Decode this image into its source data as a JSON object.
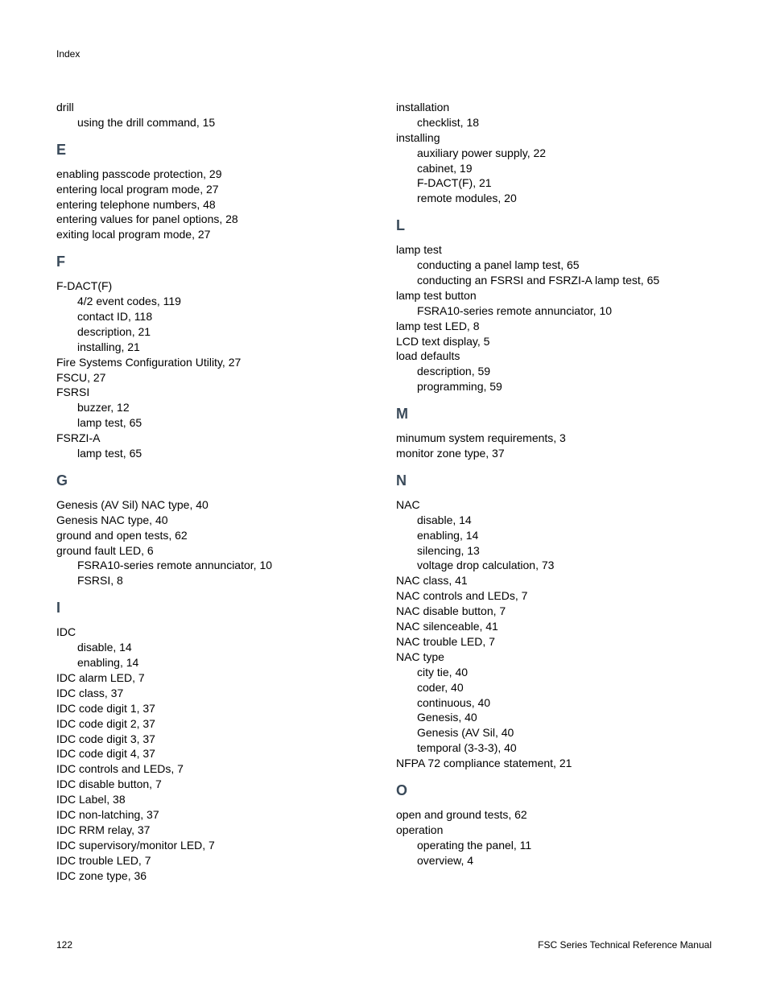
{
  "header": "Index",
  "footer": {
    "pageNumber": "122",
    "docTitle": "FSC Series Technical Reference Manual"
  },
  "left": [
    {
      "type": "entry",
      "text": "drill"
    },
    {
      "type": "sub",
      "text": "using the drill command, 15"
    },
    {
      "type": "letter",
      "text": "E"
    },
    {
      "type": "entry",
      "text": "enabling passcode protection, 29"
    },
    {
      "type": "entry",
      "text": "entering local program mode, 27"
    },
    {
      "type": "entry",
      "text": "entering telephone numbers, 48"
    },
    {
      "type": "entry",
      "text": "entering values for panel options, 28"
    },
    {
      "type": "entry",
      "text": "exiting local program mode, 27"
    },
    {
      "type": "letter",
      "text": "F"
    },
    {
      "type": "entry",
      "text": "F-DACT(F)"
    },
    {
      "type": "sub",
      "text": "4/2 event codes, 119"
    },
    {
      "type": "sub",
      "text": "contact ID, 118"
    },
    {
      "type": "sub",
      "text": "description, 21"
    },
    {
      "type": "sub",
      "text": "installing, 21"
    },
    {
      "type": "entry",
      "text": "Fire Systems Configuration Utility, 27"
    },
    {
      "type": "entry",
      "text": "FSCU, 27"
    },
    {
      "type": "entry",
      "text": "FSRSI"
    },
    {
      "type": "sub",
      "text": "buzzer, 12"
    },
    {
      "type": "sub",
      "text": "lamp test, 65"
    },
    {
      "type": "entry",
      "text": "FSRZI-A"
    },
    {
      "type": "sub",
      "text": "lamp test, 65"
    },
    {
      "type": "letter",
      "text": "G"
    },
    {
      "type": "entry",
      "text": "Genesis (AV Sil) NAC type, 40"
    },
    {
      "type": "entry",
      "text": "Genesis NAC type, 40"
    },
    {
      "type": "entry",
      "text": "ground and open tests, 62"
    },
    {
      "type": "entry",
      "text": "ground fault LED, 6"
    },
    {
      "type": "sub",
      "text": "FSRA10-series remote annunciator, 10"
    },
    {
      "type": "sub",
      "text": "FSRSI, 8"
    },
    {
      "type": "letter",
      "text": "I"
    },
    {
      "type": "entry",
      "text": "IDC"
    },
    {
      "type": "sub",
      "text": "disable, 14"
    },
    {
      "type": "sub",
      "text": "enabling, 14"
    },
    {
      "type": "entry",
      "text": "IDC alarm LED, 7"
    },
    {
      "type": "entry",
      "text": "IDC class, 37"
    },
    {
      "type": "entry",
      "text": "IDC code digit 1, 37"
    },
    {
      "type": "entry",
      "text": "IDC code digit 2, 37"
    },
    {
      "type": "entry",
      "text": "IDC code digit 3, 37"
    },
    {
      "type": "entry",
      "text": "IDC code digit 4, 37"
    },
    {
      "type": "entry",
      "text": "IDC controls and LEDs, 7"
    },
    {
      "type": "entry",
      "text": "IDC disable button, 7"
    },
    {
      "type": "entry",
      "text": "IDC Label, 38"
    },
    {
      "type": "entry",
      "text": "IDC non-latching, 37"
    },
    {
      "type": "entry",
      "text": "IDC RRM relay, 37"
    },
    {
      "type": "entry",
      "text": "IDC supervisory/monitor LED, 7"
    },
    {
      "type": "entry",
      "text": "IDC trouble LED, 7"
    },
    {
      "type": "entry",
      "text": "IDC zone type, 36"
    }
  ],
  "right": [
    {
      "type": "entry",
      "text": "installation"
    },
    {
      "type": "sub",
      "text": "checklist, 18"
    },
    {
      "type": "entry",
      "text": "installing"
    },
    {
      "type": "sub",
      "text": "auxiliary power supply, 22"
    },
    {
      "type": "sub",
      "text": "cabinet, 19"
    },
    {
      "type": "sub",
      "text": "F-DACT(F), 21"
    },
    {
      "type": "sub",
      "text": "remote modules, 20"
    },
    {
      "type": "letter",
      "text": "L"
    },
    {
      "type": "entry",
      "text": "lamp test"
    },
    {
      "type": "sub",
      "text": "conducting a panel lamp test, 65"
    },
    {
      "type": "sub",
      "text": "conducting an FSRSI and FSRZI-A lamp test, 65"
    },
    {
      "type": "entry",
      "text": "lamp test button"
    },
    {
      "type": "sub",
      "text": "FSRA10-series remote annunciator, 10"
    },
    {
      "type": "entry",
      "text": "lamp test LED, 8"
    },
    {
      "type": "entry",
      "text": "LCD text display, 5"
    },
    {
      "type": "entry",
      "text": "load defaults"
    },
    {
      "type": "sub",
      "text": "description, 59"
    },
    {
      "type": "sub",
      "text": "programming, 59"
    },
    {
      "type": "letter",
      "text": "M"
    },
    {
      "type": "entry",
      "text": "minumum system requirements, 3"
    },
    {
      "type": "entry",
      "text": "monitor zone type, 37"
    },
    {
      "type": "letter",
      "text": "N"
    },
    {
      "type": "entry",
      "text": "NAC"
    },
    {
      "type": "sub",
      "text": "disable, 14"
    },
    {
      "type": "sub",
      "text": "enabling, 14"
    },
    {
      "type": "sub",
      "text": "silencing, 13"
    },
    {
      "type": "sub",
      "text": "voltage drop calculation, 73"
    },
    {
      "type": "entry",
      "text": "NAC class, 41"
    },
    {
      "type": "entry",
      "text": "NAC controls and LEDs, 7"
    },
    {
      "type": "entry",
      "text": "NAC disable button, 7"
    },
    {
      "type": "entry",
      "text": "NAC silenceable, 41"
    },
    {
      "type": "entry",
      "text": "NAC trouble LED, 7"
    },
    {
      "type": "entry",
      "text": "NAC type"
    },
    {
      "type": "sub",
      "text": "city tie, 40"
    },
    {
      "type": "sub",
      "text": "coder, 40"
    },
    {
      "type": "sub",
      "text": "continuous, 40"
    },
    {
      "type": "sub",
      "text": "Genesis, 40"
    },
    {
      "type": "sub",
      "text": "Genesis (AV Sil, 40"
    },
    {
      "type": "sub",
      "text": "temporal (3-3-3), 40"
    },
    {
      "type": "entry",
      "text": "NFPA 72 compliance statement, 21"
    },
    {
      "type": "letter",
      "text": "O"
    },
    {
      "type": "entry",
      "text": "open and ground tests, 62"
    },
    {
      "type": "entry",
      "text": "operation"
    },
    {
      "type": "sub",
      "text": "operating the panel, 11"
    },
    {
      "type": "sub",
      "text": "overview, 4"
    }
  ]
}
